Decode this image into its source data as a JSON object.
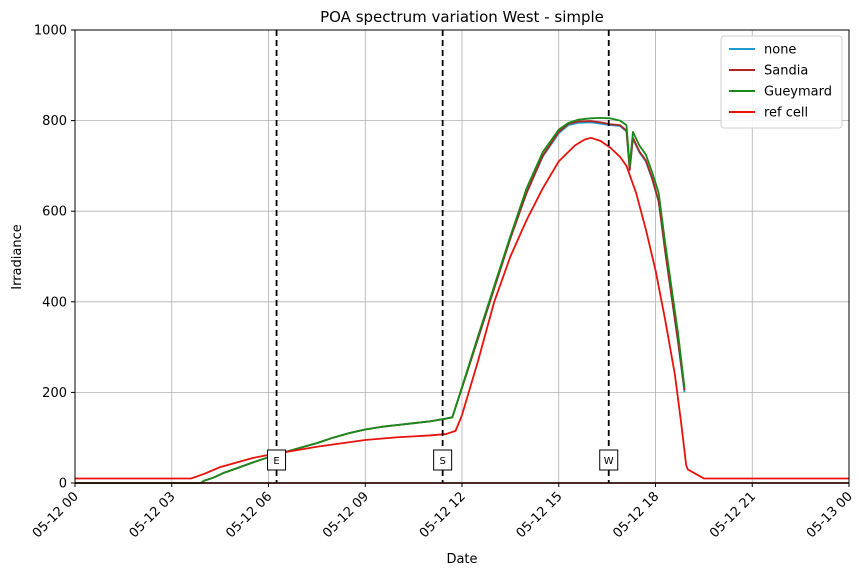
{
  "chart_data": {
    "type": "line",
    "title": "POA spectrum variation West - simple",
    "xlabel": "Date",
    "ylabel": "Irradiance",
    "ylim": [
      0,
      1000
    ],
    "yticks": [
      0,
      200,
      400,
      600,
      800,
      1000
    ],
    "xlim": [
      "05-12 00:00",
      "05-13 00:00"
    ],
    "xticks": [
      {
        "value": 0,
        "label": "05-12 00"
      },
      {
        "value": 3,
        "label": "05-12 03"
      },
      {
        "value": 6,
        "label": "05-12 06"
      },
      {
        "value": 9,
        "label": "05-12 09"
      },
      {
        "value": 12,
        "label": "05-12 12"
      },
      {
        "value": 15,
        "label": "05-12 15"
      },
      {
        "value": 18,
        "label": "05-12 18"
      },
      {
        "value": 21,
        "label": "05-12 21"
      },
      {
        "value": 24,
        "label": "05-13 00"
      }
    ],
    "grid": true,
    "legend_position": "top-right",
    "markers": [
      {
        "x": 6.25,
        "label": "E"
      },
      {
        "x": 11.4,
        "label": "S"
      },
      {
        "x": 16.55,
        "label": "W"
      }
    ],
    "series": [
      {
        "name": "none",
        "color": "#1f9bcf",
        "x": [
          0,
          3.9,
          4.0,
          4.3,
          4.6,
          5.0,
          5.5,
          6.0,
          6.5,
          7.0,
          7.5,
          8.0,
          8.5,
          9.0,
          9.5,
          10.0,
          10.5,
          11.0,
          11.5,
          11.7,
          12.0,
          12.5,
          13.0,
          13.5,
          14.0,
          14.5,
          15.0,
          15.3,
          15.6,
          16.0,
          16.3,
          16.6,
          16.9,
          17.1,
          17.2,
          17.3,
          17.5,
          17.7,
          17.9,
          18.1,
          18.3,
          18.5,
          18.7,
          18.9
        ],
        "y": [
          0,
          0,
          5,
          12,
          22,
          32,
          45,
          57,
          68,
          78,
          88,
          100,
          110,
          118,
          124,
          128,
          132,
          136,
          142,
          145,
          210,
          320,
          430,
          540,
          640,
          720,
          772,
          790,
          795,
          796,
          793,
          790,
          788,
          776,
          690,
          760,
          730,
          710,
          670,
          620,
          510,
          410,
          310,
          200
        ]
      },
      {
        "name": "Sandia",
        "color": "#b22222",
        "x": [
          0,
          3.9,
          4.0,
          4.3,
          4.6,
          5.0,
          5.5,
          6.0,
          6.5,
          7.0,
          7.5,
          8.0,
          8.5,
          9.0,
          9.5,
          10.0,
          10.5,
          11.0,
          11.5,
          11.7,
          12.0,
          12.5,
          13.0,
          13.5,
          14.0,
          14.5,
          15.0,
          15.3,
          15.6,
          16.0,
          16.3,
          16.6,
          16.9,
          17.1,
          17.2,
          17.3,
          17.5,
          17.7,
          17.9,
          18.1,
          18.3,
          18.5,
          18.7,
          18.9
        ],
        "y": [
          0,
          0,
          5,
          12,
          22,
          32,
          45,
          57,
          68,
          78,
          88,
          100,
          110,
          118,
          124,
          128,
          132,
          136,
          142,
          145,
          210,
          320,
          430,
          540,
          640,
          722,
          775,
          793,
          798,
          799,
          796,
          792,
          790,
          778,
          692,
          762,
          732,
          712,
          672,
          622,
          512,
          412,
          312,
          205
        ]
      },
      {
        "name": "Gueymard",
        "color": "#1a8a1a",
        "x": [
          0,
          3.9,
          4.0,
          4.3,
          4.6,
          5.0,
          5.5,
          6.0,
          6.5,
          7.0,
          7.5,
          8.0,
          8.5,
          9.0,
          9.5,
          10.0,
          10.5,
          11.0,
          11.5,
          11.7,
          12.0,
          12.5,
          13.0,
          13.5,
          14.0,
          14.5,
          15.0,
          15.3,
          15.6,
          16.0,
          16.3,
          16.6,
          16.9,
          17.1,
          17.2,
          17.3,
          17.5,
          17.7,
          17.9,
          18.1,
          18.3,
          18.5,
          18.7,
          18.9
        ],
        "y": [
          0,
          0,
          5,
          12,
          22,
          32,
          45,
          57,
          68,
          78,
          88,
          100,
          110,
          118,
          124,
          128,
          132,
          136,
          142,
          145,
          212,
          325,
          435,
          545,
          650,
          730,
          780,
          795,
          802,
          805,
          806,
          805,
          800,
          790,
          700,
          775,
          745,
          725,
          685,
          640,
          530,
          430,
          330,
          210
        ]
      },
      {
        "name": "ref cell",
        "color": "#e8120c",
        "x": [
          0,
          3.6,
          4.0,
          4.5,
          5.0,
          5.5,
          6.0,
          6.5,
          7.0,
          7.5,
          8.0,
          8.5,
          9.0,
          9.5,
          10.0,
          10.5,
          11.0,
          11.5,
          11.8,
          12.0,
          12.5,
          13.0,
          13.5,
          14.0,
          14.5,
          15.0,
          15.5,
          15.8,
          16.0,
          16.3,
          16.6,
          16.9,
          17.1,
          17.4,
          17.7,
          18.0,
          18.3,
          18.6,
          18.8,
          18.95,
          19.0,
          19.5,
          24
        ],
        "y": [
          10,
          10,
          20,
          35,
          45,
          55,
          62,
          68,
          74,
          80,
          85,
          90,
          95,
          98,
          101,
          103,
          105,
          108,
          115,
          150,
          270,
          400,
          500,
          580,
          650,
          710,
          745,
          758,
          762,
          755,
          740,
          720,
          700,
          640,
          560,
          470,
          360,
          240,
          130,
          40,
          30,
          10,
          10
        ]
      },
      {
        "name": "",
        "color": "#6b1a1a",
        "x": [
          0,
          24
        ],
        "y": [
          0,
          0
        ]
      }
    ]
  }
}
